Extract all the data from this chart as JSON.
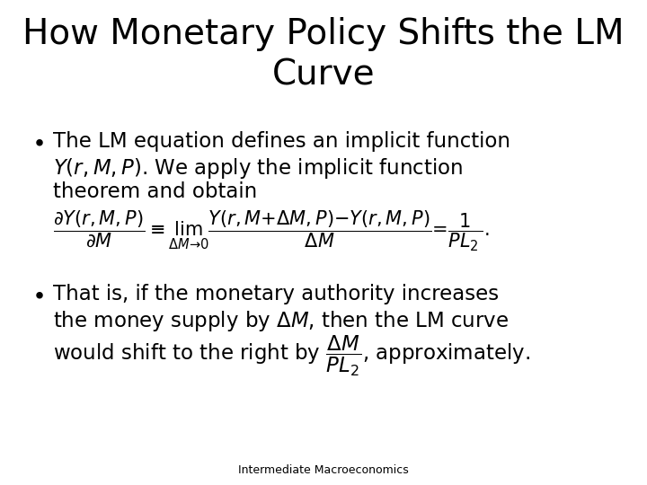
{
  "title_line1": "How Monetary Policy Shifts the LM",
  "title_line2": "Curve",
  "title_fontsize": 28,
  "title_color": "#000000",
  "background_color": "#ffffff",
  "footer_text": "Intermediate Macroeconomics",
  "footer_fontsize": 9,
  "bullet1_text1": "The LM equation defines an implicit function",
  "bullet1_text2": "theorem and obtain",
  "bullet2_text1": "That is, if the monetary authority increases",
  "text_fontsize": 16.5,
  "math_fontsize": 15
}
